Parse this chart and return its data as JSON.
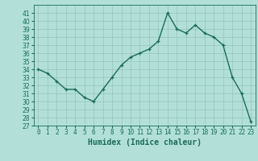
{
  "x": [
    0,
    1,
    2,
    3,
    4,
    5,
    6,
    7,
    8,
    9,
    10,
    11,
    12,
    13,
    14,
    15,
    16,
    17,
    18,
    19,
    20,
    21,
    22,
    23
  ],
  "y": [
    34,
    33.5,
    32.5,
    31.5,
    31.5,
    30.5,
    30,
    31.5,
    33,
    34.5,
    35.5,
    36,
    36.5,
    37.5,
    41,
    39,
    38.5,
    39.5,
    38.5,
    38,
    37,
    33,
    31,
    27.5
  ],
  "xlabel": "Humidex (Indice chaleur)",
  "xlim": [
    -0.5,
    23.5
  ],
  "ylim": [
    27,
    42
  ],
  "yticks": [
    27,
    28,
    29,
    30,
    31,
    32,
    33,
    34,
    35,
    36,
    37,
    38,
    39,
    40,
    41
  ],
  "xtick_labels": [
    "0",
    "1",
    "2",
    "3",
    "4",
    "5",
    "6",
    "7",
    "8",
    "9",
    "10",
    "11",
    "12",
    "13",
    "14",
    "15",
    "16",
    "17",
    "18",
    "19",
    "20",
    "21",
    "22",
    "23"
  ],
  "line_color": "#1a6b5a",
  "bg_color": "#b2e0d8",
  "grid_color": "#8bbfb8",
  "tick_fontsize": 5.5,
  "xlabel_fontsize": 7,
  "linewidth": 1.0,
  "markersize": 3.5
}
